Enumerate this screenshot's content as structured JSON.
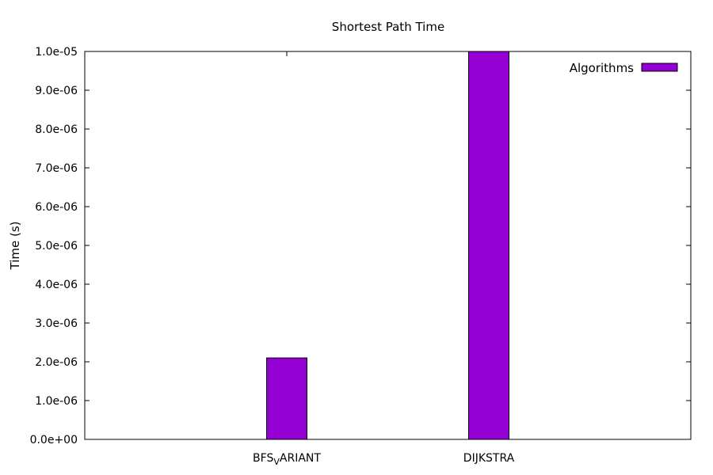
{
  "chart_data": {
    "type": "bar",
    "title": "Shortest Path Time",
    "xlabel": "",
    "ylabel": "Time (s)",
    "categories": [
      "BFS_VARIANT",
      "DIJKSTRA"
    ],
    "category_display": [
      {
        "main": "BFS",
        "sub": "V",
        "rest": "ARIANT"
      },
      {
        "main": "DIJKSTRA",
        "sub": "",
        "rest": ""
      }
    ],
    "series": [
      {
        "name": "Algorithms",
        "values": [
          2.1e-06,
          1e-05
        ],
        "color": "#9400d3"
      }
    ],
    "ylim": [
      0,
      1e-05
    ],
    "yticks": [
      0,
      1e-06,
      2e-06,
      3e-06,
      4e-06,
      5e-06,
      6e-06,
      7e-06,
      8e-06,
      9e-06,
      1e-05
    ],
    "ytick_labels": [
      "0.0e+00",
      "1.0e-06",
      "2.0e-06",
      "3.0e-06",
      "4.0e-06",
      "5.0e-06",
      "6.0e-06",
      "7.0e-06",
      "8.0e-06",
      "9.0e-06",
      "1.0e-05"
    ],
    "grid": false,
    "legend_position": "top-right"
  }
}
